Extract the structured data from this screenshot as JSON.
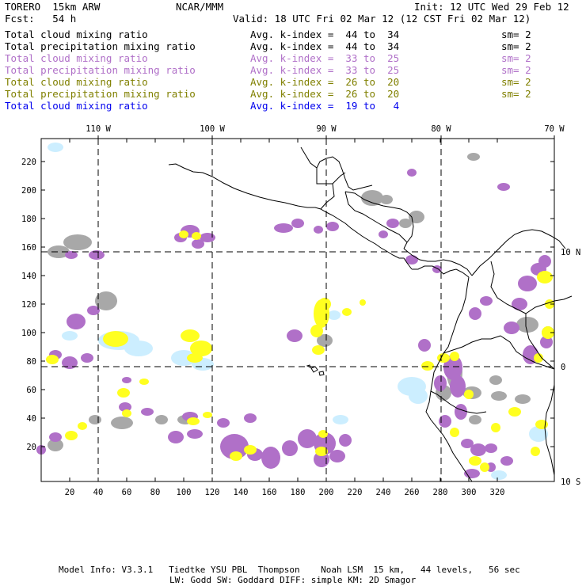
{
  "header": {
    "model": "TORERO  15km ARW",
    "org": "NCAR/MMM",
    "init": "Init: 12 UTC Wed 29 Feb 12",
    "fcst": "Fcst:   54 h",
    "valid": "Valid: 18 UTC Fri 02 Mar 12 (12 CST Fri 02 Mar 12)"
  },
  "legend": [
    {
      "field": "Total cloud mixing ratio",
      "stat": "Avg. k-index =  44 to  34",
      "sm": "sm= 2",
      "color": "#000000"
    },
    {
      "field": "Total precipitation mixing ratio",
      "stat": "Avg. k-index =  44 to  34",
      "sm": "sm= 2",
      "color": "#000000"
    },
    {
      "field": "Total cloud mixing ratio",
      "stat": "Avg. k-index =  33 to  25",
      "sm": "sm= 2",
      "color": "#b070c8"
    },
    {
      "field": "Total precipitation mixing ratio",
      "stat": "Avg. k-index =  33 to  25",
      "sm": "sm= 2",
      "color": "#b070c8"
    },
    {
      "field": "Total cloud mixing ratio",
      "stat": "Avg. k-index =  26 to  20",
      "sm": "sm= 2",
      "color": "#808000"
    },
    {
      "field": "Total precipitation mixing ratio",
      "stat": "Avg. k-index =  26 to  20",
      "sm": "sm= 2",
      "color": "#808000"
    },
    {
      "field": "Total cloud mixing ratio",
      "stat": "Avg. k-index =  19 to   4",
      "sm": "",
      "color": "#0000ee"
    }
  ],
  "map": {
    "lon_labels": [
      "110 W",
      "100 W",
      "90 W",
      "80 W",
      "70 W"
    ],
    "lat_labels": [
      "10 N",
      "0",
      "10 S"
    ],
    "x_ticks": [
      "20",
      "40",
      "60",
      "80",
      "100",
      "120",
      "140",
      "160",
      "180",
      "200",
      "220",
      "240",
      "260",
      "280",
      "300",
      "320"
    ],
    "y_ticks": [
      "20",
      "40",
      "60",
      "80",
      "100",
      "120",
      "140",
      "160",
      "180",
      "200",
      "220"
    ],
    "colors": {
      "gray": "#a8a8a8",
      "purple": "#b070c8",
      "yellow": "#ffff20",
      "lightblue": "#cceeff",
      "coast": "#000000"
    }
  },
  "footer": {
    "line1": "Model Info: V3.3.1   Tiedtke YSU PBL  Thompson    Noah LSM  15 km,   44 levels,   56 sec",
    "line2": "LW: Godd SW: Goddard DIFF: simple KM: 2D Smagor"
  }
}
